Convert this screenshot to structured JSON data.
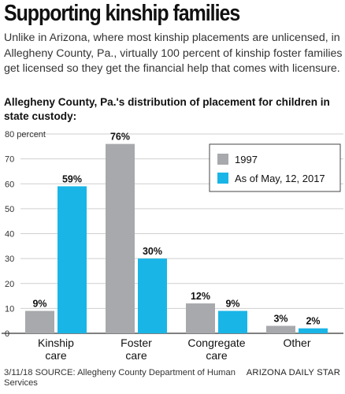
{
  "headline": "Supporting kinship families",
  "intro": "Unlike in Arizona, where most kinship placements are unlicensed, in Allegheny County, Pa., virtually 100 percent of kinship foster families get licensed so they get the financial help that comes with licensure.",
  "footer": {
    "left": "3/11/18  SOURCE: Allegheny County Department of Human Services",
    "right": "ARIZONA DAILY STAR"
  },
  "colors": {
    "series1": "#a7a9ac",
    "series2": "#19b5e6",
    "grid": "#cfcfcf"
  },
  "chart_data": {
    "type": "bar",
    "title": "Allegheny County, Pa.'s distribution of placement for children in state custody:",
    "y_unit_label": "percent",
    "categories": [
      [
        "Kinship",
        "care"
      ],
      [
        "Foster",
        "care"
      ],
      [
        "Congregate",
        "care"
      ],
      [
        "Other"
      ]
    ],
    "series": [
      {
        "name": "1997",
        "values": [
          9,
          76,
          12,
          3
        ],
        "labels": [
          "9%",
          "76%",
          "12%",
          "3%"
        ]
      },
      {
        "name": "As of May, 12, 2017",
        "values": [
          59,
          30,
          9,
          2
        ],
        "labels": [
          "59%",
          "30%",
          "9%",
          "2%"
        ]
      }
    ],
    "yticks": [
      0,
      10,
      20,
      30,
      40,
      50,
      60,
      70,
      80
    ],
    "ylim": [
      0,
      80
    ],
    "grid": true,
    "legend_position": "top-right"
  }
}
